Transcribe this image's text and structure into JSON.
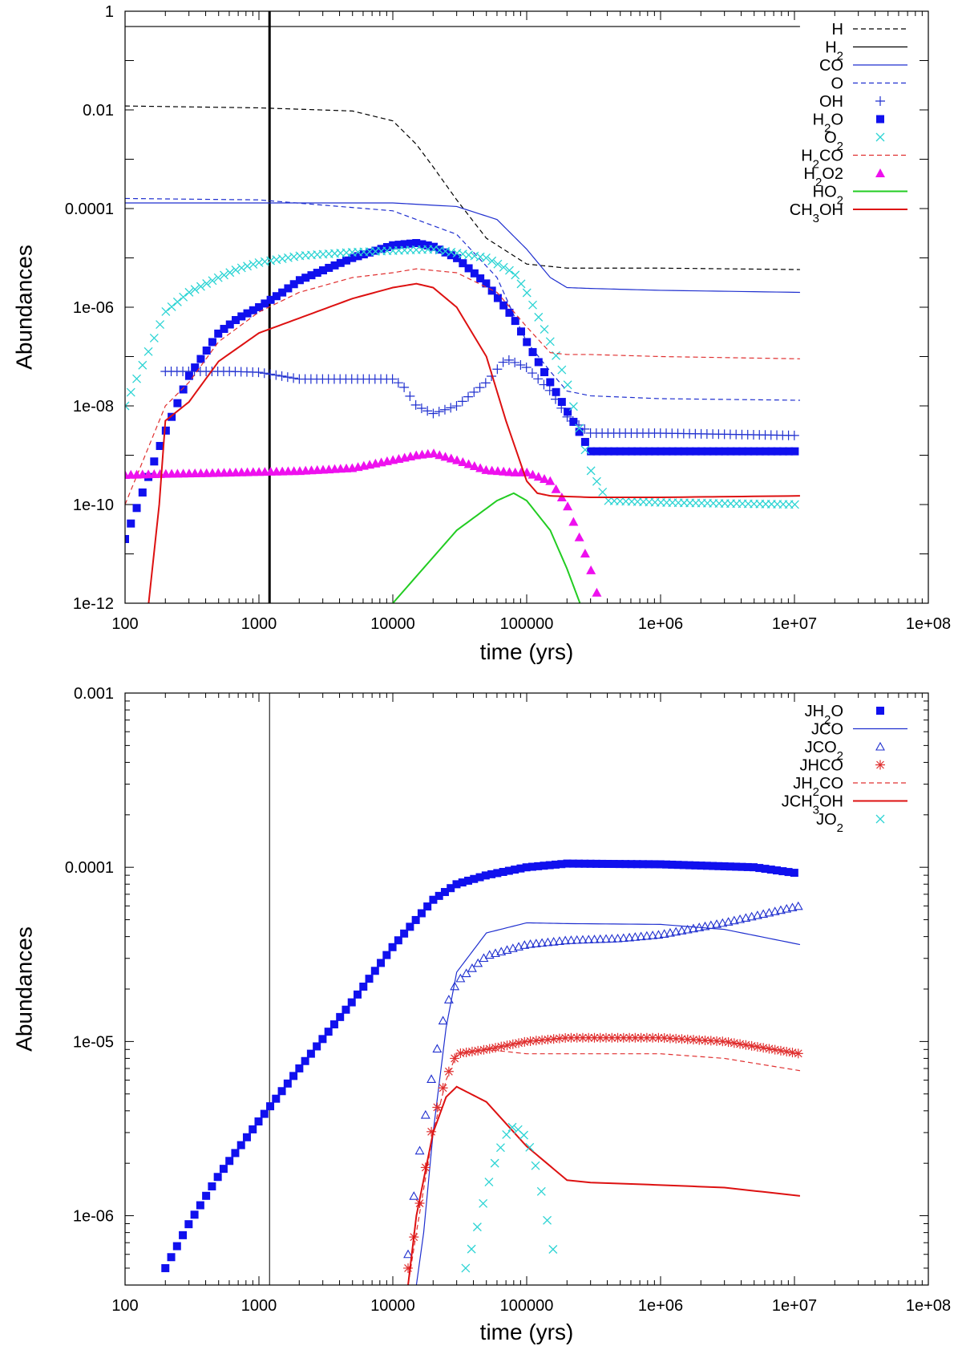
{
  "chart_data": [
    {
      "type": "line",
      "id": "gas",
      "xscale": "log",
      "yscale": "log",
      "xlim": [
        100,
        100000000
      ],
      "ylim": [
        1e-12,
        1
      ],
      "xlabel": "time (yrs)",
      "ylabel": "Abundances",
      "xticks": [
        {
          "v": 100,
          "label": "100"
        },
        {
          "v": 1000,
          "label": "1000"
        },
        {
          "v": 10000,
          "label": "10000"
        },
        {
          "v": 100000,
          "label": "100000"
        },
        {
          "v": 1000000,
          "label": "1e+06"
        },
        {
          "v": 10000000,
          "label": "1e+07"
        },
        {
          "v": 100000000,
          "label": "1e+08"
        }
      ],
      "yticks": [
        {
          "v": 1e-12,
          "label": "1e-12"
        },
        {
          "v": 1e-10,
          "label": "1e-10"
        },
        {
          "v": 1e-08,
          "label": "1e-08"
        },
        {
          "v": 1e-06,
          "label": "1e-06"
        },
        {
          "v": 0.0001,
          "label": "0.0001"
        },
        {
          "v": 0.01,
          "label": "0.01"
        },
        {
          "v": 1,
          "label": "1"
        }
      ],
      "vline": 1200,
      "legend": "top-right",
      "series": [
        {
          "name": "H",
          "label_main": "H",
          "label_sub": "",
          "label_tail": "",
          "style": "dashed",
          "color": "#000000",
          "x": [
            100,
            1000,
            5000,
            10000,
            15000,
            20000,
            30000,
            50000,
            100000,
            200000,
            1000000,
            11000000
          ],
          "y": [
            0.012,
            0.011,
            0.0095,
            0.006,
            0.002,
            0.0007,
            0.00015,
            2.5e-05,
            7.5e-06,
            6.2e-06,
            6.2e-06,
            5.8e-06
          ]
        },
        {
          "name": "H2",
          "label_main": "H",
          "label_sub": "2",
          "label_tail": "",
          "style": "solid",
          "color": "#000000",
          "x": [
            100,
            11000000
          ],
          "y": [
            0.49,
            0.49
          ]
        },
        {
          "name": "CO",
          "label_main": "CO",
          "label_sub": "",
          "label_tail": "",
          "style": "solid",
          "color": "#1f2fcf",
          "x": [
            100,
            1000,
            10000,
            30000,
            60000,
            100000,
            150000,
            200000,
            300000,
            1000000,
            11000000
          ],
          "y": [
            0.00013,
            0.00013,
            0.00013,
            0.00011,
            6e-05,
            1.5e-05,
            4e-06,
            2.5e-06,
            2.4e-06,
            2.2e-06,
            2e-06
          ]
        },
        {
          "name": "O",
          "label_main": "O",
          "label_sub": "",
          "label_tail": "",
          "style": "dashed",
          "color": "#1f2fcf",
          "x": [
            100,
            1000,
            10000,
            30000,
            60000,
            80000,
            100000,
            150000,
            200000,
            300000,
            1000000,
            11000000
          ],
          "y": [
            0.00016,
            0.00015,
            9e-05,
            3e-05,
            4e-06,
            7e-07,
            2e-07,
            5e-08,
            2e-08,
            1.6e-08,
            1.4e-08,
            1.3e-08
          ]
        },
        {
          "name": "OH",
          "label_main": "OH",
          "label_sub": "",
          "label_tail": "",
          "style": "plus",
          "color": "#1f2fcf",
          "x": [
            200,
            300,
            400,
            600,
            1000,
            2000,
            5000,
            10000,
            12000,
            15000,
            20000,
            30000,
            50000,
            70000,
            100000,
            150000,
            200000,
            300000,
            1000000,
            11000000
          ],
          "y": [
            5e-08,
            5e-08,
            5e-08,
            5e-08,
            4.8e-08,
            3.5e-08,
            3.5e-08,
            3.5e-08,
            2.5e-08,
            1e-08,
            7e-09,
            1e-08,
            3e-08,
            9e-08,
            6e-08,
            2e-08,
            6e-09,
            2.8e-09,
            2.8e-09,
            2.5e-09
          ]
        },
        {
          "name": "H2O",
          "label_main": "H",
          "label_sub": "2",
          "label_tail": "O",
          "style": "square",
          "color": "#1010ee",
          "x": [
            100,
            200,
            300,
            500,
            700,
            1000,
            1500,
            2000,
            5000,
            10000,
            15000,
            20000,
            30000,
            50000,
            80000,
            100000,
            150000,
            200000,
            300000,
            1000000,
            11000000
          ],
          "y": [
            2e-11,
            3e-09,
            4e-08,
            3e-07,
            6e-07,
            1e-06,
            2e-06,
            3.5e-06,
            1e-05,
            1.8e-05,
            2e-05,
            1.7e-05,
            1e-05,
            3e-06,
            6e-07,
            2e-07,
            3e-08,
            8e-09,
            1.2e-09,
            1.2e-09,
            1.2e-09
          ]
        },
        {
          "name": "O2",
          "label_main": "O",
          "label_sub": "2",
          "label_tail": "",
          "style": "cross",
          "color": "#2dd4d4",
          "x": [
            100,
            200,
            300,
            500,
            700,
            1000,
            2000,
            5000,
            10000,
            20000,
            50000,
            80000,
            100000,
            150000,
            200000,
            300000,
            400000,
            1000000,
            11000000
          ],
          "y": [
            1e-08,
            8e-07,
            2e-06,
            4e-06,
            6e-06,
            8e-06,
            1.1e-05,
            1.3e-05,
            1.4e-05,
            1.5e-05,
            1e-05,
            5e-06,
            2e-06,
            2e-07,
            3e-08,
            5e-10,
            1.2e-10,
            1.1e-10,
            1e-10
          ]
        },
        {
          "name": "H2CO",
          "label_main": "H",
          "label_sub": "2",
          "label_tail": "CO",
          "style": "dashed",
          "color": "#e03030",
          "x": [
            100,
            200,
            300,
            500,
            1000,
            2000,
            5000,
            10000,
            15000,
            30000,
            60000,
            100000,
            150000,
            200000,
            300000,
            1000000,
            11000000
          ],
          "y": [
            1e-10,
            1e-08,
            3e-08,
            2e-07,
            8e-07,
            2e-06,
            4e-06,
            5e-06,
            6e-06,
            5e-06,
            2e-06,
            4e-07,
            1.2e-07,
            1.1e-07,
            1.1e-07,
            1e-07,
            9e-08
          ]
        },
        {
          "name": "H2O2",
          "label_main": "H",
          "label_sub": "2",
          "label_tail": "O2",
          "style": "triangle",
          "color": "#ee10ee",
          "x": [
            100,
            200,
            500,
            1000,
            2000,
            5000,
            10000,
            15000,
            20000,
            30000,
            50000,
            80000,
            100000,
            150000,
            200000,
            250000,
            300000,
            350000
          ],
          "y": [
            4e-10,
            4.2e-10,
            4.4e-10,
            4.6e-10,
            4.8e-10,
            5.5e-10,
            8e-10,
            1e-09,
            1.1e-09,
            8e-10,
            5e-10,
            4.5e-10,
            4.5e-10,
            3e-10,
            1e-10,
            2e-11,
            5e-12,
            1e-12
          ]
        },
        {
          "name": "HO2",
          "label_main": "HO",
          "label_sub": "2",
          "label_tail": "",
          "style": "solid",
          "color": "#22cc22",
          "x": [
            10000,
            30000,
            60000,
            80000,
            100000,
            150000,
            200000,
            250000
          ],
          "y": [
            1e-12,
            3e-11,
            1.2e-10,
            1.7e-10,
            1.2e-10,
            3e-11,
            5e-12,
            1e-12
          ]
        },
        {
          "name": "CH3OH",
          "label_main": "CH",
          "label_sub": "3",
          "label_tail": "OH",
          "style": "solid",
          "color": "#dd1111",
          "x": [
            150,
            180,
            200,
            300,
            500,
            1000,
            2000,
            5000,
            10000,
            15000,
            20000,
            30000,
            50000,
            70000,
            100000,
            120000,
            150000,
            300000,
            1000000,
            11000000
          ],
          "y": [
            1e-12,
            1e-10,
            5e-09,
            1.2e-08,
            8e-08,
            3e-07,
            6e-07,
            1.5e-06,
            2.5e-06,
            3e-06,
            2.5e-06,
            1e-06,
            1e-07,
            5e-09,
            3e-10,
            1.7e-10,
            1.5e-10,
            1.4e-10,
            1.4e-10,
            1.5e-10
          ]
        }
      ]
    },
    {
      "type": "line",
      "id": "ice",
      "xscale": "log",
      "yscale": "log",
      "xlim": [
        100,
        100000000
      ],
      "ylim": [
        4e-07,
        0.001
      ],
      "xlabel": "time (yrs)",
      "ylabel": "Abundances",
      "xticks": [
        {
          "v": 100,
          "label": "100"
        },
        {
          "v": 1000,
          "label": "1000"
        },
        {
          "v": 10000,
          "label": "10000"
        },
        {
          "v": 100000,
          "label": "100000"
        },
        {
          "v": 1000000,
          "label": "1e+06"
        },
        {
          "v": 10000000,
          "label": "1e+07"
        },
        {
          "v": 100000000,
          "label": "1e+08"
        }
      ],
      "yticks": [
        {
          "v": 1e-06,
          "label": "1e-06"
        },
        {
          "v": 1e-05,
          "label": "1e-05"
        },
        {
          "v": 0.0001,
          "label": "0.0001"
        },
        {
          "v": 0.001,
          "label": "0.001"
        }
      ],
      "vline": 1200,
      "legend": "top-right",
      "series": [
        {
          "name": "JH2O",
          "label_main": "JH",
          "label_sub": "2",
          "label_tail": "O",
          "style": "square",
          "color": "#1010ee",
          "x": [
            200,
            300,
            500,
            1000,
            2000,
            5000,
            10000,
            20000,
            30000,
            50000,
            100000,
            200000,
            1000000,
            5000000,
            11000000
          ],
          "y": [
            5e-07,
            9e-07,
            1.7e-06,
            3.5e-06,
            7e-06,
            1.7e-05,
            3.5e-05,
            6.5e-05,
            8e-05,
            9e-05,
            0.0001,
            0.000105,
            0.000104,
            0.0001,
            9.2e-05
          ]
        },
        {
          "name": "JCO",
          "label_main": "JCO",
          "label_sub": "",
          "label_tail": "",
          "style": "solid",
          "color": "#1f2fcf",
          "x": [
            15000,
            17000,
            20000,
            25000,
            30000,
            50000,
            100000,
            200000,
            1000000,
            3000000,
            11000000
          ],
          "y": [
            4e-07,
            8e-07,
            3e-06,
            1.2e-05,
            2.5e-05,
            4.2e-05,
            4.8e-05,
            4.75e-05,
            4.7e-05,
            4.4e-05,
            3.6e-05
          ]
        },
        {
          "name": "JCO2",
          "label_main": "JCO",
          "label_sub": "2",
          "label_tail": "",
          "style": "triangle-open",
          "color": "#1f2fcf",
          "x": [
            13000,
            15000,
            20000,
            25000,
            30000,
            50000,
            100000,
            200000,
            500000,
            1000000,
            3000000,
            11000000
          ],
          "y": [
            6e-07,
            1.8e-06,
            7e-06,
            1.6e-05,
            2.2e-05,
            3.1e-05,
            3.6e-05,
            3.8e-05,
            3.9e-05,
            4.1e-05,
            4.8e-05,
            6e-05
          ]
        },
        {
          "name": "JHCO",
          "label_main": "JHCO",
          "label_sub": "",
          "label_tail": "",
          "style": "star",
          "color": "#e03030",
          "x": [
            13000,
            15000,
            20000,
            25000,
            30000,
            50000,
            100000,
            200000,
            1000000,
            3000000,
            11000000
          ],
          "y": [
            5e-07,
            9e-07,
            3.5e-06,
            6.2e-06,
            8.5e-06,
            9e-06,
            1e-05,
            1.05e-05,
            1.05e-05,
            1e-05,
            8.5e-06
          ]
        },
        {
          "name": "JH2CO",
          "label_main": "JH",
          "label_sub": "2",
          "label_tail": "CO",
          "style": "dashed",
          "color": "#e03030",
          "x": [
            13000,
            15000,
            20000,
            25000,
            30000,
            50000,
            100000,
            200000,
            1000000,
            3000000,
            11000000
          ],
          "y": [
            4e-07,
            8e-07,
            3e-06,
            6e-06,
            8.5e-06,
            9e-06,
            8.5e-06,
            8.5e-06,
            8.5e-06,
            8e-06,
            6.8e-06
          ]
        },
        {
          "name": "JCH3OH",
          "label_main": "JCH",
          "label_sub": "3",
          "label_tail": "OH",
          "style": "solid",
          "color": "#dd1111",
          "x": [
            13000,
            15000,
            20000,
            25000,
            30000,
            50000,
            100000,
            200000,
            300000,
            1000000,
            3000000,
            11000000
          ],
          "y": [
            4e-07,
            1e-06,
            3e-06,
            4.8e-06,
            5.5e-06,
            4.5e-06,
            2.5e-06,
            1.6e-06,
            1.55e-06,
            1.5e-06,
            1.45e-06,
            1.3e-06
          ]
        },
        {
          "name": "JO2",
          "label_main": "JO",
          "label_sub": "2",
          "label_tail": "",
          "style": "cross",
          "color": "#2dd4d4",
          "x": [
            35000,
            40000,
            50000,
            60000,
            70000,
            80000,
            100000,
            120000,
            140000,
            160000
          ],
          "y": [
            5e-07,
            7e-07,
            1.4e-06,
            2.2e-06,
            2.9e-06,
            3.3e-06,
            2.8e-06,
            1.8e-06,
            1e-06,
            6e-07
          ]
        }
      ]
    }
  ]
}
